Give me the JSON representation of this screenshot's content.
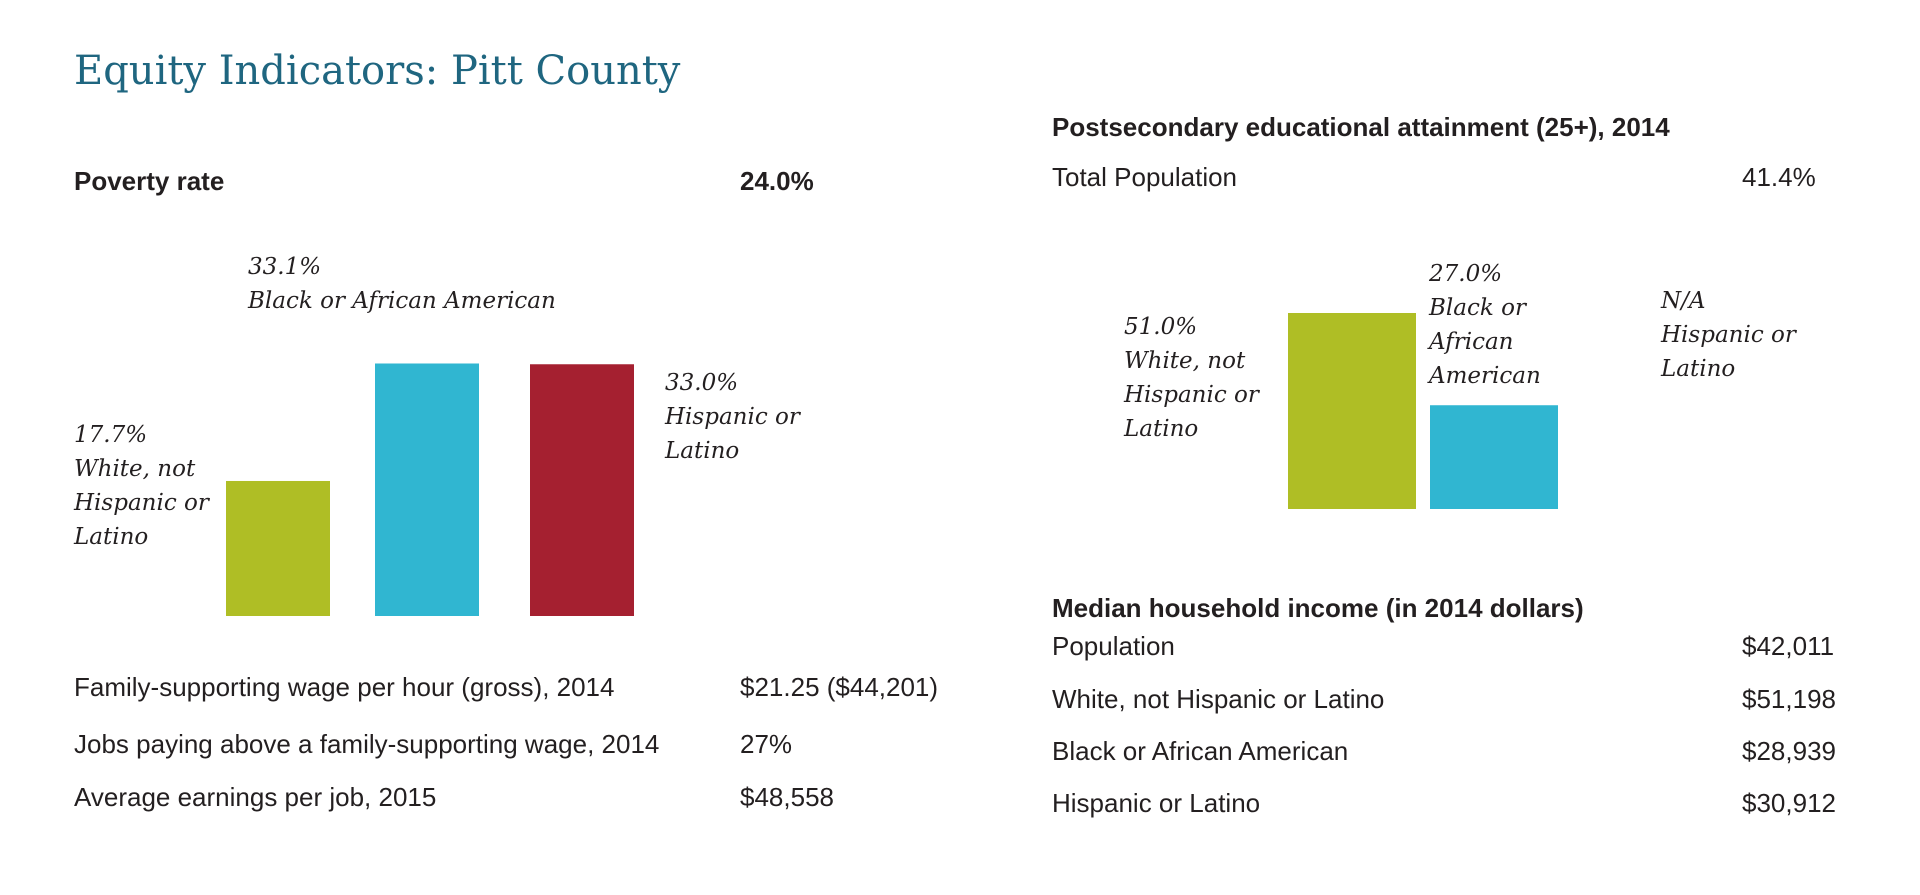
{
  "title": "Equity Indicators: Pitt County",
  "colors": {
    "title": "#1f6680",
    "white_not_hispanic": "#afbe25",
    "black_african_american": "#30b6d1",
    "hispanic_latino": "#a52030"
  },
  "poverty": {
    "heading": "Poverty rate",
    "total": "24.0%"
  },
  "postsecondary": {
    "heading": "Postsecondary educational attainment (25+), 2014",
    "total_label": "Total Population",
    "total_value": "41.4%"
  },
  "chart_data": [
    {
      "type": "bar",
      "title": "Poverty rate",
      "unit": "%",
      "categories": [
        "White, not Hispanic or Latino",
        "Black or African American",
        "Hispanic or Latino"
      ],
      "values": [
        17.7,
        33.1,
        33.0
      ],
      "ylim": [
        0,
        35
      ],
      "labels": [
        {
          "value": "17.7%",
          "lines": [
            "White, not",
            "Hispanic or",
            "Latino"
          ]
        },
        {
          "value": "33.1%",
          "lines": [
            "Black or African American"
          ]
        },
        {
          "value": "33.0%",
          "lines": [
            "Hispanic or",
            "Latino"
          ]
        }
      ],
      "grid": false,
      "legend": "none"
    },
    {
      "type": "bar",
      "title": "Postsecondary educational attainment (25+), 2014",
      "unit": "%",
      "categories": [
        "White, not Hispanic or Latino",
        "Black or African American",
        "Hispanic or Latino"
      ],
      "values": [
        51.0,
        27.0,
        null
      ],
      "ylim": [
        0,
        51
      ],
      "labels": [
        {
          "value": "51.0%",
          "lines": [
            "White, not",
            "Hispanic or",
            "Latino"
          ]
        },
        {
          "value": "27.0%",
          "lines": [
            "Black or",
            "African",
            "American"
          ]
        },
        {
          "value": "N/A",
          "lines": [
            "Hispanic or",
            "Latino"
          ]
        }
      ],
      "grid": false,
      "legend": "none"
    }
  ],
  "wages": [
    {
      "label": "Family-supporting wage per hour (gross), 2014",
      "value": "$21.25 ($44,201)"
    },
    {
      "label": "Jobs paying above a family-supporting wage, 2014",
      "value": "27%"
    },
    {
      "label": "Average earnings per job, 2015",
      "value": "$48,558"
    }
  ],
  "income": {
    "heading": "Median household income (in 2014 dollars)",
    "rows": [
      {
        "label": "Population",
        "value": "$42,011"
      },
      {
        "label": "White, not Hispanic or Latino",
        "value": "$51,198"
      },
      {
        "label": "Black or African American",
        "value": "$28,939"
      },
      {
        "label": "Hispanic or Latino",
        "value": "$30,912"
      }
    ]
  }
}
